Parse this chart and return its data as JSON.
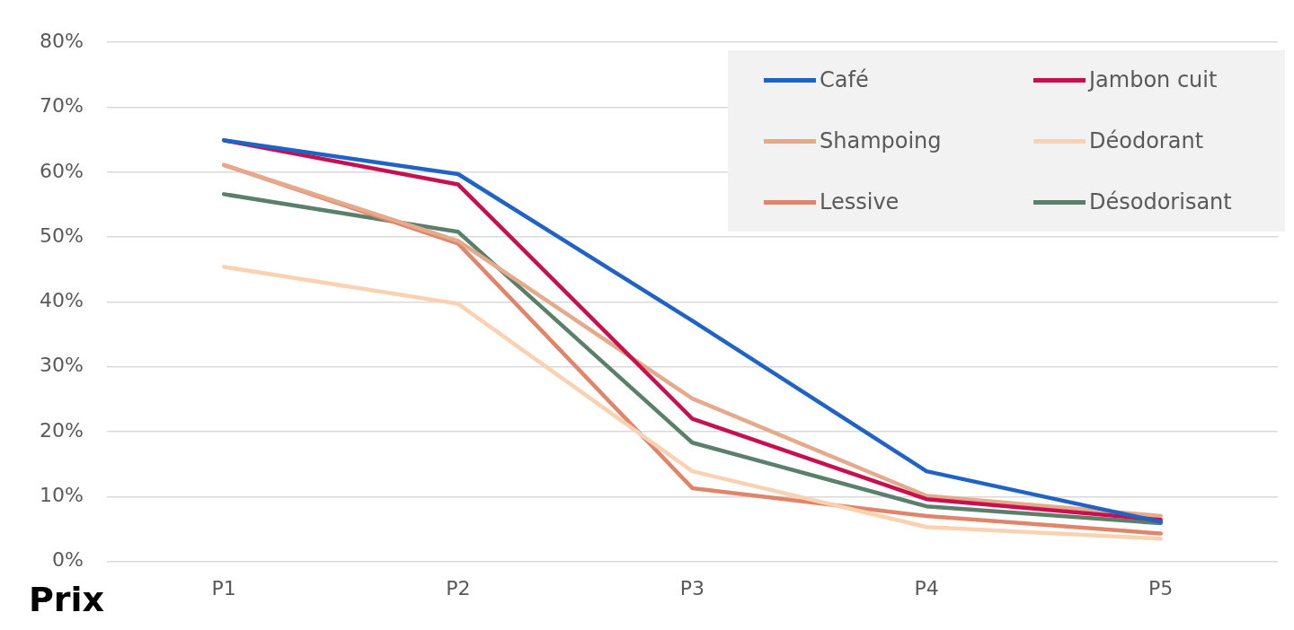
{
  "chart_data": {
    "type": "line",
    "xlabel": "Prix",
    "categories": [
      "P1",
      "P2",
      "P3",
      "P4",
      "P5"
    ],
    "series": [
      {
        "name": "Café",
        "color": "#1f63c6",
        "values": [
          64.9,
          59.7,
          37.1,
          13.9,
          6.1
        ]
      },
      {
        "name": "Jambon cuit",
        "color": "#c8104e",
        "values": [
          64.9,
          58.1,
          22.0,
          9.6,
          6.4
        ]
      },
      {
        "name": "Shampoing",
        "color": "#e5a98b",
        "values": [
          61.1,
          49.4,
          25.1,
          10.1,
          7.0
        ]
      },
      {
        "name": "Déodorant",
        "color": "#fbd2b1",
        "values": [
          45.4,
          39.7,
          13.9,
          5.3,
          3.5
        ]
      },
      {
        "name": "Lessive",
        "color": "#e0856a",
        "values": [
          61.1,
          49.0,
          11.3,
          7.0,
          4.3
        ]
      },
      {
        "name": "Désodorisant",
        "color": "#5a806b",
        "values": [
          56.6,
          50.8,
          18.3,
          8.5,
          5.9
        ]
      }
    ],
    "ylim": [
      0,
      80
    ],
    "yticks": [
      {
        "value": 0,
        "label": "0%"
      },
      {
        "value": 10,
        "label": "10%"
      },
      {
        "value": 20,
        "label": "20%"
      },
      {
        "value": 30,
        "label": "30%"
      },
      {
        "value": 40,
        "label": "40%"
      },
      {
        "value": 50,
        "label": "50%"
      },
      {
        "value": 60,
        "label": "60%"
      },
      {
        "value": 70,
        "label": "70%"
      },
      {
        "value": 80,
        "label": "80%"
      }
    ],
    "grid": "y",
    "legend": "top right",
    "marker": "none",
    "line_style": "solid"
  }
}
